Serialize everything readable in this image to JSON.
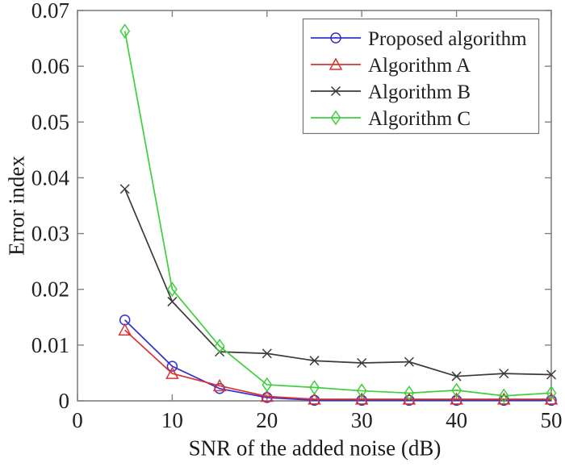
{
  "chart_data": {
    "type": "line",
    "title": "",
    "xlabel": "SNR of the added noise (dB)",
    "ylabel": "Error index",
    "xlim": [
      0,
      50
    ],
    "ylim": [
      0,
      0.07
    ],
    "x_ticks": [
      0,
      10,
      20,
      30,
      40,
      50
    ],
    "x_tick_labels": [
      "0",
      "10",
      "20",
      "30",
      "40",
      "50"
    ],
    "y_ticks": [
      0,
      0.01,
      0.02,
      0.03,
      0.04,
      0.05,
      0.06,
      0.07
    ],
    "y_tick_labels": [
      "0",
      "0.01",
      "0.02",
      "0.03",
      "0.04",
      "0.05",
      "0.06",
      "0.07"
    ],
    "grid": false,
    "legend_position": "top-right",
    "x": [
      5,
      10,
      15,
      20,
      25,
      30,
      35,
      40,
      45,
      50
    ],
    "series": [
      {
        "name": "Proposed algorithm",
        "color": "#3232cd",
        "marker": "circle",
        "values": [
          0.0145,
          0.0062,
          0.0022,
          0.0006,
          0.0001,
          0.0001,
          0.0001,
          0.0001,
          0.0001,
          0.0001
        ]
      },
      {
        "name": "Algorithm A",
        "color": "#d93434",
        "marker": "triangle",
        "values": [
          0.0127,
          0.0049,
          0.0027,
          0.0008,
          0.0003,
          0.0003,
          0.0003,
          0.0003,
          0.0003,
          0.0003
        ]
      },
      {
        "name": "Algorithm B",
        "color": "#3a3a3a",
        "marker": "x",
        "values": [
          0.038,
          0.0178,
          0.0088,
          0.0085,
          0.0072,
          0.0068,
          0.007,
          0.0044,
          0.0049,
          0.0047
        ]
      },
      {
        "name": "Algorithm C",
        "color": "#3ecf3e",
        "marker": "diamond",
        "values": [
          0.0663,
          0.02,
          0.0098,
          0.0029,
          0.0024,
          0.0018,
          0.0014,
          0.0019,
          0.0009,
          0.0014
        ]
      }
    ],
    "colors": {
      "axis": "#808080",
      "tick_text": "#212121",
      "legend_border": "#737373",
      "background": "#ffffff"
    }
  }
}
